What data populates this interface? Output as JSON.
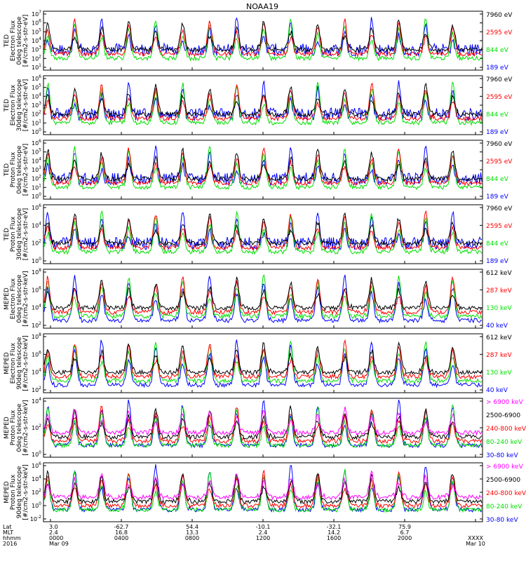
{
  "title": "NOAA19",
  "colors": {
    "blue": "#0000ff",
    "red": "#ff0000",
    "green": "#00e000",
    "black": "#000000",
    "magenta": "#ff00ff"
  },
  "panels": [
    {
      "ylabel": [
        "TED",
        "Electron Flux",
        "0deg telescope",
        "[#/cm2-s-str-eV]"
      ],
      "yexp": [
        "1",
        "2",
        "3",
        "4",
        "5",
        "6",
        "7"
      ],
      "channels": [
        {
          "label": "7960 eV",
          "color": "#000000"
        },
        {
          "label": "2595 eV",
          "color": "#ff0000"
        },
        {
          "label": "844 eV",
          "color": "#00e000"
        },
        {
          "label": "189 eV",
          "color": "#0000ff"
        }
      ]
    },
    {
      "ylabel": [
        "TED",
        "Electron Flux",
        "30deg telescope",
        "[#/cm2-s-str-eV]"
      ],
      "yexp": [
        "0",
        "1",
        "2",
        "3",
        "4",
        "5",
        "6"
      ],
      "channels": [
        {
          "label": "7960 eV",
          "color": "#000000"
        },
        {
          "label": "2595 eV",
          "color": "#ff0000"
        },
        {
          "label": "844 eV",
          "color": "#00e000"
        },
        {
          "label": "189 eV",
          "color": "#0000ff"
        }
      ]
    },
    {
      "ylabel": [
        "TED",
        "Proton Flux",
        "0deg telescope",
        "[#/cm2-s-str-eV]"
      ],
      "yexp": [
        "0",
        "1",
        "2",
        "3",
        "4",
        "5",
        "6"
      ],
      "channels": [
        {
          "label": "7960 eV",
          "color": "#000000"
        },
        {
          "label": "2595 eV",
          "color": "#ff0000"
        },
        {
          "label": "844 eV",
          "color": "#00e000"
        },
        {
          "label": "189 eV",
          "color": "#0000ff"
        }
      ]
    },
    {
      "ylabel": [
        "TED",
        "Proton Flux",
        "30deg telescope",
        "[#/cm2-s-str-eV]"
      ],
      "yexp": [
        "0",
        "2",
        "4",
        "6"
      ],
      "channels": [
        {
          "label": "7960 eV",
          "color": "#000000"
        },
        {
          "label": "2595 eV",
          "color": "#ff0000"
        },
        {
          "label": "844 eV",
          "color": "#00e000"
        },
        {
          "label": "189 eV",
          "color": "#0000ff"
        }
      ]
    },
    {
      "ylabel": [
        "MEPED",
        "Electron Flux",
        "0deg telescope",
        "[#/cm2-s-str-keV]"
      ],
      "yexp": [
        "2",
        "4",
        "6",
        "8"
      ],
      "channels": [
        {
          "label": "612 keV",
          "color": "#000000"
        },
        {
          "label": "287 keV",
          "color": "#ff0000"
        },
        {
          "label": "130 keV",
          "color": "#00e000"
        },
        {
          "label": "40 keV",
          "color": "#0000ff"
        }
      ]
    },
    {
      "ylabel": [
        "MEPED",
        "Electron Flux",
        "90deg telescope",
        "[#/cm2-s-str-keV]"
      ],
      "yexp": [
        "2",
        "4",
        "6",
        "8"
      ],
      "channels": [
        {
          "label": "612 keV",
          "color": "#000000"
        },
        {
          "label": "287 keV",
          "color": "#ff0000"
        },
        {
          "label": "130 keV",
          "color": "#00e000"
        },
        {
          "label": "40 keV",
          "color": "#0000ff"
        }
      ]
    },
    {
      "ylabel": [
        "MEPED",
        "Proton Flux",
        "0deg telescope",
        "[#/cm2-s-str-keV]"
      ],
      "yexp": [
        "0",
        "2",
        "4"
      ],
      "channels": [
        {
          "label": "> 6900 keV",
          "color": "#ff00ff"
        },
        {
          "label": "2500-6900",
          "color": "#000000"
        },
        {
          "label": "240-800 keV",
          "color": "#ff0000"
        },
        {
          "label": "80-240 keV",
          "color": "#00e000"
        },
        {
          "label": "30-80 keV",
          "color": "#0000ff"
        }
      ]
    },
    {
      "ylabel": [
        "MEPED",
        "Proton Flux",
        "90deg telescope",
        "[#/cm2-s-str-keV]"
      ],
      "yexp": [
        "-2",
        "0",
        "2",
        "4",
        "6"
      ],
      "channels": [
        {
          "label": "> 6900 keV",
          "color": "#ff00ff"
        },
        {
          "label": "2500-6900",
          "color": "#000000"
        },
        {
          "label": "240-800 keV",
          "color": "#ff0000"
        },
        {
          "label": "80-240 keV",
          "color": "#00e000"
        },
        {
          "label": "30-80 keV",
          "color": "#0000ff"
        }
      ]
    }
  ],
  "xaxis": {
    "row_labels": [
      "Lat",
      "MLT",
      "hhmm",
      "2016"
    ],
    "ticks": [
      {
        "lat": "3.0",
        "mlt": "2.4",
        "hhmm": "0000",
        "date": "Mar 09"
      },
      {
        "lat": "-62.7",
        "mlt": "16.8",
        "hhmm": "0400",
        "date": ""
      },
      {
        "lat": "54.4",
        "mlt": "13.3",
        "hhmm": "0800",
        "date": ""
      },
      {
        "lat": "-10.1",
        "mlt": "2.4",
        "hhmm": "1200",
        "date": ""
      },
      {
        "lat": "-32.1",
        "mlt": "14.2",
        "hhmm": "1600",
        "date": ""
      },
      {
        "lat": "75.9",
        "mlt": "6.7",
        "hhmm": "2000",
        "date": ""
      },
      {
        "lat": "",
        "mlt": "",
        "hhmm": "XXXX",
        "date": "Mar 10"
      }
    ]
  },
  "chart_data": {
    "type": "line",
    "title": "NOAA19",
    "x_range": [
      "2016 Mar 09 0000",
      "2016 Mar 10 0000"
    ],
    "yscale": "log",
    "panels": 8
  }
}
